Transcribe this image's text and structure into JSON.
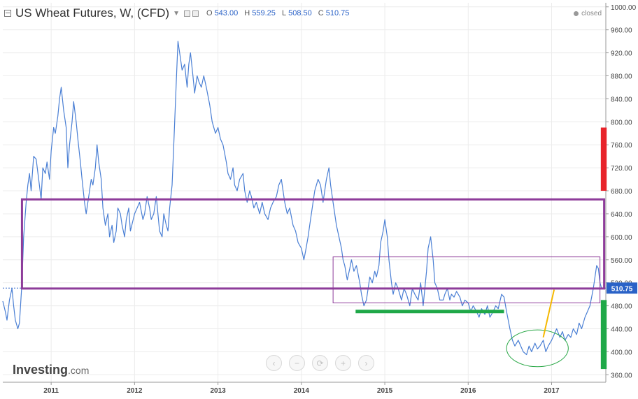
{
  "header": {
    "title": "US Wheat Futures, W, (CFD)",
    "ohlc": [
      {
        "key": "O",
        "value": "543.00"
      },
      {
        "key": "H",
        "value": "559.25"
      },
      {
        "key": "L",
        "value": "508.50"
      },
      {
        "key": "C",
        "value": "510.75"
      }
    ],
    "status": "closed"
  },
  "logo": {
    "brand": "Investing",
    "domain": ".com"
  },
  "nav_buttons": [
    {
      "name": "scroll-left-button",
      "glyph": "‹"
    },
    {
      "name": "zoom-out-button",
      "glyph": "−"
    },
    {
      "name": "reset-button",
      "glyph": "⟳"
    },
    {
      "name": "zoom-in-button",
      "glyph": "+"
    },
    {
      "name": "scroll-right-button",
      "glyph": "›"
    }
  ],
  "colors": {
    "line": "#4a7fd4",
    "price_tag": "#2a62c7",
    "purple": "#8e3c9a",
    "green": "#1fa848",
    "red": "#e8232a",
    "yellow": "#f5b800",
    "ellipse": "#28a745"
  },
  "chart_data": {
    "type": "line",
    "y_ticks": [
      360,
      400,
      440,
      480,
      520,
      560,
      600,
      640,
      680,
      720,
      760,
      800,
      840,
      880,
      920,
      960,
      1000
    ],
    "y_tick_labels": [
      "360.00",
      "400.00",
      "440.00",
      "480.00",
      "520.00",
      "560.00",
      "600.00",
      "640.00",
      "680.00",
      "720.00",
      "760.00",
      "800.00",
      "840.00",
      "880.00",
      "920.00",
      "960.00",
      "1000.00"
    ],
    "ylim": [
      347,
      1007
    ],
    "xlim": [
      2010.42,
      2017.65
    ],
    "x_ticks": [
      {
        "label": "2011",
        "x": 2011.0
      },
      {
        "label": "2012",
        "x": 2012.0
      },
      {
        "label": "2013",
        "x": 2013.0
      },
      {
        "label": "2014",
        "x": 2014.0
      },
      {
        "label": "2015",
        "x": 2015.0
      },
      {
        "label": "2016",
        "x": 2016.0
      },
      {
        "label": "2017",
        "x": 2017.0
      }
    ],
    "last_price": {
      "value": 510.75,
      "label": "510.75"
    },
    "series": [
      {
        "points": [
          [
            2010.42,
            488
          ],
          [
            2010.45,
            470
          ],
          [
            2010.47,
            455
          ],
          [
            2010.5,
            490
          ],
          [
            2010.53,
            510
          ],
          [
            2010.55,
            480
          ],
          [
            2010.57,
            455
          ],
          [
            2010.6,
            440
          ],
          [
            2010.62,
            450
          ],
          [
            2010.65,
            520
          ],
          [
            2010.67,
            600
          ],
          [
            2010.7,
            660
          ],
          [
            2010.72,
            690
          ],
          [
            2010.74,
            710
          ],
          [
            2010.76,
            680
          ],
          [
            2010.79,
            740
          ],
          [
            2010.82,
            735
          ],
          [
            2010.85,
            700
          ],
          [
            2010.88,
            665
          ],
          [
            2010.9,
            720
          ],
          [
            2010.93,
            710
          ],
          [
            2010.95,
            730
          ],
          [
            2010.98,
            700
          ],
          [
            2011.0,
            750
          ],
          [
            2011.03,
            790
          ],
          [
            2011.05,
            780
          ],
          [
            2011.08,
            810
          ],
          [
            2011.1,
            840
          ],
          [
            2011.12,
            860
          ],
          [
            2011.15,
            820
          ],
          [
            2011.18,
            790
          ],
          [
            2011.2,
            720
          ],
          [
            2011.22,
            760
          ],
          [
            2011.25,
            800
          ],
          [
            2011.27,
            835
          ],
          [
            2011.3,
            800
          ],
          [
            2011.32,
            770
          ],
          [
            2011.35,
            730
          ],
          [
            2011.37,
            700
          ],
          [
            2011.4,
            660
          ],
          [
            2011.42,
            640
          ],
          [
            2011.45,
            670
          ],
          [
            2011.48,
            700
          ],
          [
            2011.5,
            690
          ],
          [
            2011.53,
            720
          ],
          [
            2011.55,
            760
          ],
          [
            2011.57,
            730
          ],
          [
            2011.6,
            700
          ],
          [
            2011.62,
            650
          ],
          [
            2011.65,
            620
          ],
          [
            2011.68,
            640
          ],
          [
            2011.7,
            600
          ],
          [
            2011.73,
            620
          ],
          [
            2011.75,
            590
          ],
          [
            2011.78,
            610
          ],
          [
            2011.8,
            650
          ],
          [
            2011.83,
            640
          ],
          [
            2011.85,
            620
          ],
          [
            2011.88,
            600
          ],
          [
            2011.9,
            630
          ],
          [
            2011.93,
            650
          ],
          [
            2011.95,
            610
          ],
          [
            2012.0,
            640
          ],
          [
            2012.03,
            650
          ],
          [
            2012.06,
            660
          ],
          [
            2012.1,
            630
          ],
          [
            2012.12,
            640
          ],
          [
            2012.15,
            670
          ],
          [
            2012.18,
            650
          ],
          [
            2012.2,
            630
          ],
          [
            2012.23,
            640
          ],
          [
            2012.26,
            670
          ],
          [
            2012.3,
            610
          ],
          [
            2012.33,
            600
          ],
          [
            2012.35,
            640
          ],
          [
            2012.38,
            620
          ],
          [
            2012.4,
            610
          ],
          [
            2012.42,
            650
          ],
          [
            2012.45,
            690
          ],
          [
            2012.47,
            760
          ],
          [
            2012.5,
            870
          ],
          [
            2012.52,
            940
          ],
          [
            2012.55,
            910
          ],
          [
            2012.57,
            890
          ],
          [
            2012.6,
            900
          ],
          [
            2012.63,
            860
          ],
          [
            2012.65,
            900
          ],
          [
            2012.67,
            920
          ],
          [
            2012.7,
            880
          ],
          [
            2012.72,
            850
          ],
          [
            2012.75,
            880
          ],
          [
            2012.77,
            870
          ],
          [
            2012.8,
            860
          ],
          [
            2012.83,
            880
          ],
          [
            2012.86,
            860
          ],
          [
            2012.9,
            830
          ],
          [
            2012.93,
            800
          ],
          [
            2012.97,
            780
          ],
          [
            2013.0,
            790
          ],
          [
            2013.03,
            770
          ],
          [
            2013.06,
            760
          ],
          [
            2013.1,
            730
          ],
          [
            2013.12,
            710
          ],
          [
            2013.15,
            700
          ],
          [
            2013.18,
            720
          ],
          [
            2013.2,
            690
          ],
          [
            2013.23,
            680
          ],
          [
            2013.26,
            700
          ],
          [
            2013.3,
            710
          ],
          [
            2013.32,
            680
          ],
          [
            2013.35,
            660
          ],
          [
            2013.38,
            680
          ],
          [
            2013.4,
            670
          ],
          [
            2013.43,
            650
          ],
          [
            2013.46,
            660
          ],
          [
            2013.5,
            640
          ],
          [
            2013.53,
            660
          ],
          [
            2013.56,
            640
          ],
          [
            2013.6,
            630
          ],
          [
            2013.63,
            650
          ],
          [
            2013.66,
            660
          ],
          [
            2013.7,
            670
          ],
          [
            2013.73,
            690
          ],
          [
            2013.76,
            700
          ],
          [
            2013.8,
            660
          ],
          [
            2013.83,
            640
          ],
          [
            2013.86,
            650
          ],
          [
            2013.9,
            620
          ],
          [
            2013.93,
            610
          ],
          [
            2013.96,
            590
          ],
          [
            2014.0,
            580
          ],
          [
            2014.03,
            560
          ],
          [
            2014.05,
            575
          ],
          [
            2014.08,
            600
          ],
          [
            2014.1,
            620
          ],
          [
            2014.13,
            650
          ],
          [
            2014.16,
            680
          ],
          [
            2014.2,
            700
          ],
          [
            2014.23,
            690
          ],
          [
            2014.26,
            660
          ],
          [
            2014.3,
            700
          ],
          [
            2014.33,
            720
          ],
          [
            2014.35,
            690
          ],
          [
            2014.38,
            660
          ],
          [
            2014.42,
            620
          ],
          [
            2014.45,
            600
          ],
          [
            2014.48,
            580
          ],
          [
            2014.5,
            560
          ],
          [
            2014.52,
            550
          ],
          [
            2014.55,
            525
          ],
          [
            2014.58,
            545
          ],
          [
            2014.6,
            560
          ],
          [
            2014.63,
            540
          ],
          [
            2014.66,
            550
          ],
          [
            2014.7,
            520
          ],
          [
            2014.72,
            500
          ],
          [
            2014.75,
            480
          ],
          [
            2014.78,
            490
          ],
          [
            2014.8,
            510
          ],
          [
            2014.82,
            530
          ],
          [
            2014.85,
            520
          ],
          [
            2014.88,
            540
          ],
          [
            2014.9,
            530
          ],
          [
            2014.93,
            550
          ],
          [
            2014.95,
            590
          ],
          [
            2014.98,
            610
          ],
          [
            2015.0,
            630
          ],
          [
            2015.03,
            600
          ],
          [
            2015.05,
            560
          ],
          [
            2015.08,
            520
          ],
          [
            2015.1,
            500
          ],
          [
            2015.13,
            520
          ],
          [
            2015.16,
            510
          ],
          [
            2015.2,
            490
          ],
          [
            2015.23,
            510
          ],
          [
            2015.26,
            500
          ],
          [
            2015.3,
            480
          ],
          [
            2015.33,
            510
          ],
          [
            2015.36,
            500
          ],
          [
            2015.4,
            490
          ],
          [
            2015.43,
            520
          ],
          [
            2015.46,
            480
          ],
          [
            2015.5,
            540
          ],
          [
            2015.52,
            580
          ],
          [
            2015.55,
            600
          ],
          [
            2015.58,
            560
          ],
          [
            2015.6,
            520
          ],
          [
            2015.63,
            510
          ],
          [
            2015.66,
            490
          ],
          [
            2015.7,
            490
          ],
          [
            2015.72,
            500
          ],
          [
            2015.75,
            510
          ],
          [
            2015.78,
            490
          ],
          [
            2015.8,
            500
          ],
          [
            2015.83,
            495
          ],
          [
            2015.86,
            505
          ],
          [
            2015.9,
            495
          ],
          [
            2015.93,
            480
          ],
          [
            2015.96,
            490
          ],
          [
            2016.0,
            485
          ],
          [
            2016.03,
            470
          ],
          [
            2016.06,
            480
          ],
          [
            2016.1,
            470
          ],
          [
            2016.13,
            460
          ],
          [
            2016.16,
            475
          ],
          [
            2016.2,
            465
          ],
          [
            2016.23,
            480
          ],
          [
            2016.26,
            460
          ],
          [
            2016.3,
            470
          ],
          [
            2016.33,
            480
          ],
          [
            2016.36,
            475
          ],
          [
            2016.4,
            500
          ],
          [
            2016.43,
            495
          ],
          [
            2016.46,
            470
          ],
          [
            2016.5,
            440
          ],
          [
            2016.53,
            420
          ],
          [
            2016.56,
            410
          ],
          [
            2016.6,
            420
          ],
          [
            2016.63,
            410
          ],
          [
            2016.66,
            400
          ],
          [
            2016.7,
            395
          ],
          [
            2016.73,
            410
          ],
          [
            2016.76,
            400
          ],
          [
            2016.8,
            415
          ],
          [
            2016.83,
            405
          ],
          [
            2016.86,
            410
          ],
          [
            2016.9,
            420
          ],
          [
            2016.93,
            400
          ],
          [
            2016.96,
            410
          ],
          [
            2017.0,
            420
          ],
          [
            2017.03,
            430
          ],
          [
            2017.06,
            440
          ],
          [
            2017.1,
            425
          ],
          [
            2017.13,
            435
          ],
          [
            2017.16,
            420
          ],
          [
            2017.2,
            430
          ],
          [
            2017.23,
            425
          ],
          [
            2017.26,
            440
          ],
          [
            2017.3,
            430
          ],
          [
            2017.33,
            450
          ],
          [
            2017.36,
            440
          ],
          [
            2017.4,
            460
          ],
          [
            2017.43,
            470
          ],
          [
            2017.46,
            480
          ],
          [
            2017.5,
            510
          ],
          [
            2017.52,
            530
          ],
          [
            2017.54,
            550
          ],
          [
            2017.56,
            545
          ],
          [
            2017.58,
            520
          ],
          [
            2017.6,
            510
          ]
        ]
      }
    ],
    "annotations": [
      {
        "type": "rect",
        "name": "wide-range-box",
        "color": "purple",
        "x1": 2010.65,
        "x2": 2017.63,
        "y1": 665,
        "y2": 510,
        "stroke": 3
      },
      {
        "type": "rect",
        "name": "inner-range-box",
        "color": "purple",
        "x1": 2014.38,
        "x2": 2017.58,
        "y1": 565,
        "y2": 485,
        "stroke": 1
      },
      {
        "type": "hline",
        "name": "support-line",
        "color": "green",
        "x1": 2014.65,
        "x2": 2016.43,
        "y": 470,
        "stroke": 5
      },
      {
        "type": "ellipse",
        "name": "bottom-ellipse",
        "color": "ellipse",
        "cx": 2016.83,
        "cy": 406,
        "rx": 0.37,
        "ry": 32
      },
      {
        "type": "segment",
        "name": "breakout-line",
        "color": "yellow",
        "x1": 2016.9,
        "y1": 425,
        "x2": 2017.03,
        "y2": 508,
        "stroke": 2
      },
      {
        "type": "bar",
        "name": "red-target-bar",
        "color": "red",
        "x1": 2017.59,
        "x2": 2017.66,
        "y1": 790,
        "y2": 680
      },
      {
        "type": "bar",
        "name": "green-target-bar",
        "color": "green",
        "x1": 2017.59,
        "x2": 2017.66,
        "y1": 490,
        "y2": 370
      }
    ]
  }
}
